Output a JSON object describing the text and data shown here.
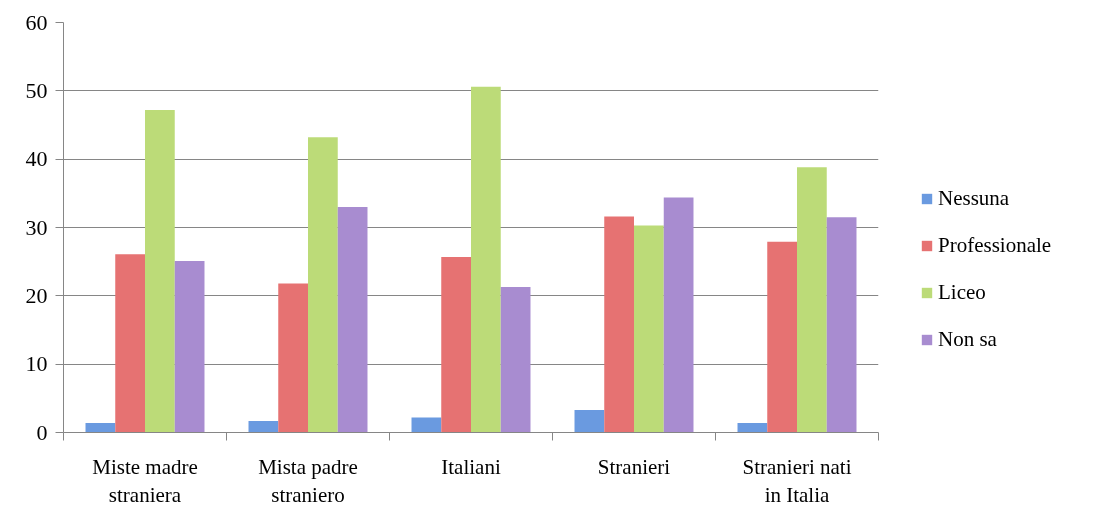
{
  "chart_data": {
    "type": "bar",
    "categories": [
      "Miste madre straniera",
      "Mista padre straniero",
      "Italiani",
      "Stranieri",
      "Stranieri nati in Italia"
    ],
    "series": [
      {
        "name": "Nessuna",
        "color": "#6a9ae0",
        "values": [
          1.4,
          1.7,
          2.2,
          3.3,
          1.4
        ]
      },
      {
        "name": "Professionale",
        "color": "#e67272",
        "values": [
          26.1,
          21.8,
          25.7,
          31.6,
          27.9
        ]
      },
      {
        "name": "Liceo",
        "color": "#bcdb78",
        "values": [
          47.2,
          43.2,
          50.6,
          30.3,
          38.8
        ]
      },
      {
        "name": "Non sa",
        "color": "#a88cd0",
        "values": [
          25.1,
          33.0,
          21.3,
          34.4,
          31.5
        ]
      }
    ],
    "ylim": [
      0,
      60
    ],
    "yticks": [
      0,
      10,
      20,
      30,
      40,
      50,
      60
    ],
    "grid": "y",
    "legend": "right"
  }
}
